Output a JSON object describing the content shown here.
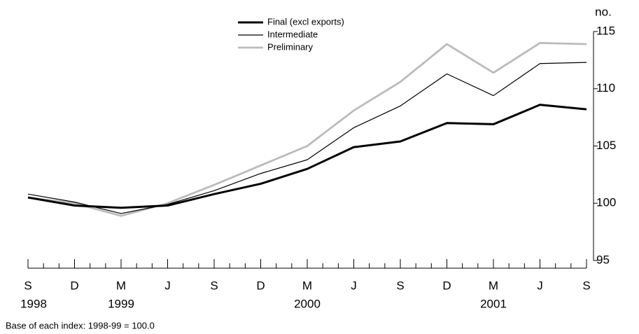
{
  "chart_data": {
    "type": "line",
    "categories": [
      "S",
      "D",
      "M",
      "J",
      "S",
      "D",
      "M",
      "J",
      "S",
      "D",
      "M",
      "J",
      "S"
    ],
    "x_years": [
      "1998",
      null,
      "1999",
      null,
      null,
      null,
      "2000",
      null,
      null,
      null,
      "2001",
      null,
      null
    ],
    "y_axis_label": "no.",
    "ylim": [
      95,
      115
    ],
    "yticks": [
      95,
      100,
      105,
      110,
      115
    ],
    "legend": "top-center",
    "series": [
      {
        "name": "Final (excl exports)",
        "color": "#000000",
        "line_width": 3,
        "values": [
          100.5,
          99.8,
          99.6,
          99.8,
          100.8,
          101.7,
          103.0,
          104.9,
          105.4,
          107.0,
          106.9,
          108.6,
          108.2
        ]
      },
      {
        "name": "Intermediate",
        "color": "#000000",
        "line_width": 1.2,
        "values": [
          100.8,
          100.1,
          99.1,
          99.9,
          101.1,
          102.6,
          103.8,
          106.6,
          108.5,
          111.3,
          109.4,
          112.2,
          112.3
        ]
      },
      {
        "name": "Preliminary",
        "color": "#bbbbbb",
        "line_width": 2.8,
        "values": [
          100.5,
          100.0,
          98.9,
          100.0,
          101.6,
          103.3,
          105.0,
          108.1,
          110.6,
          113.9,
          111.4,
          114.0,
          113.9
        ]
      }
    ],
    "footnote": "Base of each index: 1998-99 = 100.0"
  }
}
